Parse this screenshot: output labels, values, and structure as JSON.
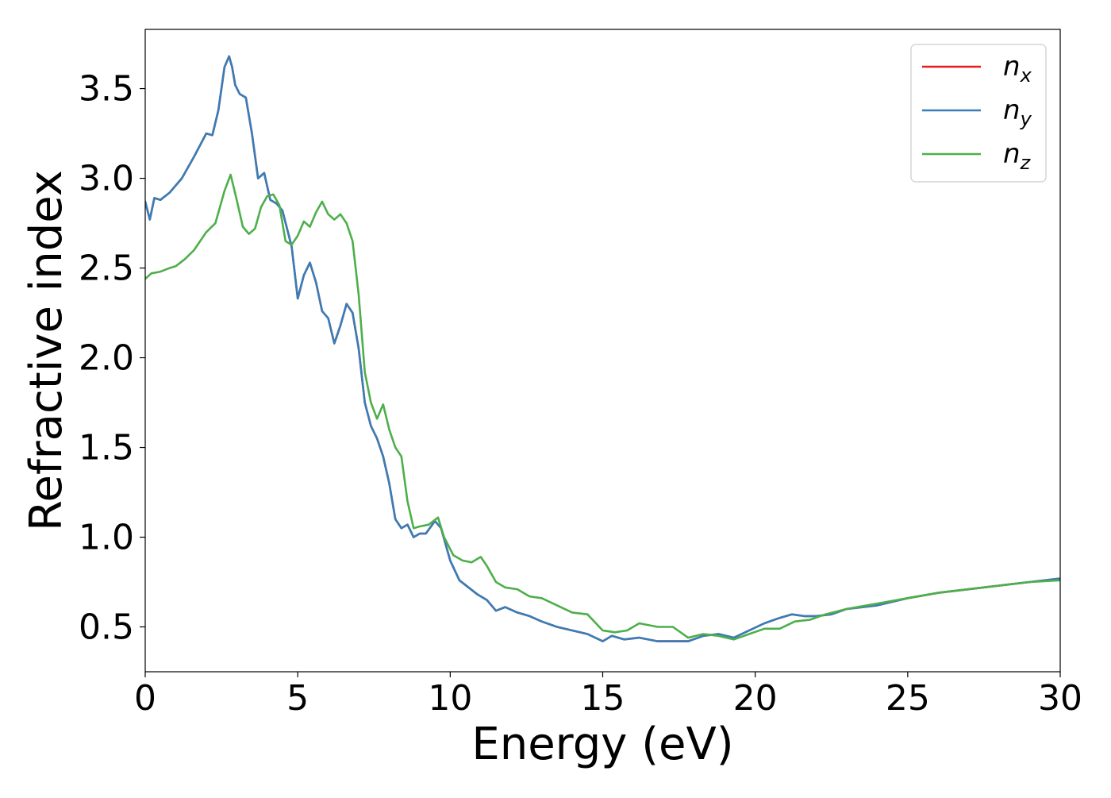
{
  "chart_data": {
    "type": "line",
    "title": "",
    "xlabel": "Energy (eV)",
    "ylabel": "Refractive index",
    "xlim": [
      0,
      30
    ],
    "ylim": [
      0.25,
      3.83
    ],
    "xticks": [
      0,
      5,
      10,
      15,
      20,
      25,
      30
    ],
    "yticks": [
      0.5,
      1.0,
      1.5,
      2.0,
      2.5,
      3.0,
      3.5
    ],
    "xtick_labels": [
      "0",
      "5",
      "10",
      "15",
      "20",
      "25",
      "30"
    ],
    "ytick_labels": [
      "0.5",
      "1.0",
      "1.5",
      "2.0",
      "2.5",
      "3.0",
      "3.5"
    ],
    "grid": false,
    "legend_position": "top-right",
    "series": [
      {
        "name": "n_x",
        "legend_base": "n",
        "legend_sub": "x",
        "color": "#e41a1c",
        "x": [
          0,
          0.15,
          0.3,
          0.5,
          0.8,
          1.2,
          1.6,
          2.0,
          2.2,
          2.4,
          2.6,
          2.75,
          2.85,
          2.95,
          3.1,
          3.3,
          3.5,
          3.7,
          3.9,
          4.1,
          4.3,
          4.5,
          4.8,
          5.0,
          5.2,
          5.4,
          5.6,
          5.8,
          6.0,
          6.2,
          6.4,
          6.6,
          6.8,
          7.0,
          7.2,
          7.4,
          7.6,
          7.8,
          8.0,
          8.2,
          8.4,
          8.6,
          8.8,
          9.0,
          9.2,
          9.5,
          9.7,
          10.0,
          10.3,
          10.6,
          10.9,
          11.2,
          11.5,
          11.8,
          12.2,
          12.6,
          13.0,
          13.5,
          14.0,
          14.5,
          15.0,
          15.3,
          15.7,
          16.2,
          16.8,
          17.3,
          17.8,
          18.3,
          18.8,
          19.3,
          19.8,
          20.3,
          20.8,
          21.2,
          21.6,
          22.0,
          22.5,
          23.0,
          24.0,
          25.0,
          26.0,
          27.0,
          28.0,
          29.0,
          30.0
        ],
        "y": [
          2.87,
          2.77,
          2.89,
          2.88,
          2.92,
          3.0,
          3.12,
          3.25,
          3.24,
          3.38,
          3.62,
          3.68,
          3.62,
          3.52,
          3.47,
          3.45,
          3.25,
          3.0,
          3.03,
          2.88,
          2.86,
          2.82,
          2.62,
          2.33,
          2.46,
          2.53,
          2.42,
          2.26,
          2.22,
          2.08,
          2.18,
          2.3,
          2.25,
          2.05,
          1.75,
          1.62,
          1.55,
          1.45,
          1.3,
          1.1,
          1.05,
          1.07,
          1.0,
          1.02,
          1.02,
          1.09,
          1.05,
          0.87,
          0.76,
          0.72,
          0.68,
          0.65,
          0.59,
          0.61,
          0.58,
          0.56,
          0.53,
          0.5,
          0.48,
          0.46,
          0.42,
          0.45,
          0.43,
          0.44,
          0.42,
          0.42,
          0.42,
          0.45,
          0.46,
          0.44,
          0.48,
          0.52,
          0.55,
          0.57,
          0.56,
          0.56,
          0.57,
          0.6,
          0.62,
          0.66,
          0.69,
          0.71,
          0.73,
          0.75,
          0.77
        ]
      },
      {
        "name": "n_y",
        "legend_base": "n",
        "legend_sub": "y",
        "color": "#377eb8",
        "x": [
          0,
          0.15,
          0.3,
          0.5,
          0.8,
          1.2,
          1.6,
          2.0,
          2.2,
          2.4,
          2.6,
          2.75,
          2.85,
          2.95,
          3.1,
          3.3,
          3.5,
          3.7,
          3.9,
          4.1,
          4.3,
          4.5,
          4.8,
          5.0,
          5.2,
          5.4,
          5.6,
          5.8,
          6.0,
          6.2,
          6.4,
          6.6,
          6.8,
          7.0,
          7.2,
          7.4,
          7.6,
          7.8,
          8.0,
          8.2,
          8.4,
          8.6,
          8.8,
          9.0,
          9.2,
          9.5,
          9.7,
          10.0,
          10.3,
          10.6,
          10.9,
          11.2,
          11.5,
          11.8,
          12.2,
          12.6,
          13.0,
          13.5,
          14.0,
          14.5,
          15.0,
          15.3,
          15.7,
          16.2,
          16.8,
          17.3,
          17.8,
          18.3,
          18.8,
          19.3,
          19.8,
          20.3,
          20.8,
          21.2,
          21.6,
          22.0,
          22.5,
          23.0,
          24.0,
          25.0,
          26.0,
          27.0,
          28.0,
          29.0,
          30.0
        ],
        "y": [
          2.87,
          2.77,
          2.89,
          2.88,
          2.92,
          3.0,
          3.12,
          3.25,
          3.24,
          3.38,
          3.62,
          3.68,
          3.62,
          3.52,
          3.47,
          3.45,
          3.25,
          3.0,
          3.03,
          2.88,
          2.86,
          2.82,
          2.62,
          2.33,
          2.46,
          2.53,
          2.42,
          2.26,
          2.22,
          2.08,
          2.18,
          2.3,
          2.25,
          2.05,
          1.75,
          1.62,
          1.55,
          1.45,
          1.3,
          1.1,
          1.05,
          1.07,
          1.0,
          1.02,
          1.02,
          1.09,
          1.05,
          0.87,
          0.76,
          0.72,
          0.68,
          0.65,
          0.59,
          0.61,
          0.58,
          0.56,
          0.53,
          0.5,
          0.48,
          0.46,
          0.42,
          0.45,
          0.43,
          0.44,
          0.42,
          0.42,
          0.42,
          0.45,
          0.46,
          0.44,
          0.48,
          0.52,
          0.55,
          0.57,
          0.56,
          0.56,
          0.57,
          0.6,
          0.62,
          0.66,
          0.69,
          0.71,
          0.73,
          0.75,
          0.77
        ]
      },
      {
        "name": "n_z",
        "legend_base": "n",
        "legend_sub": "z",
        "color": "#4daf4a",
        "x": [
          0,
          0.2,
          0.5,
          0.8,
          1.0,
          1.3,
          1.6,
          2.0,
          2.3,
          2.6,
          2.8,
          2.9,
          3.0,
          3.2,
          3.4,
          3.6,
          3.8,
          4.0,
          4.2,
          4.4,
          4.6,
          4.8,
          5.0,
          5.2,
          5.4,
          5.6,
          5.8,
          6.0,
          6.2,
          6.4,
          6.6,
          6.8,
          7.0,
          7.2,
          7.4,
          7.6,
          7.8,
          8.0,
          8.2,
          8.4,
          8.6,
          8.8,
          9.0,
          9.3,
          9.6,
          9.8,
          10.1,
          10.4,
          10.7,
          11.0,
          11.2,
          11.5,
          11.8,
          12.2,
          12.6,
          13.0,
          13.5,
          14.0,
          14.5,
          15.0,
          15.4,
          15.8,
          16.2,
          16.8,
          17.3,
          17.8,
          18.3,
          18.8,
          19.3,
          19.8,
          20.3,
          20.8,
          21.3,
          21.8,
          22.3,
          23.0,
          24.0,
          25.0,
          26.0,
          27.0,
          28.0,
          29.0,
          30.0
        ],
        "y": [
          2.44,
          2.47,
          2.48,
          2.5,
          2.51,
          2.55,
          2.6,
          2.7,
          2.75,
          2.93,
          3.02,
          2.95,
          2.88,
          2.73,
          2.69,
          2.72,
          2.84,
          2.9,
          2.91,
          2.85,
          2.65,
          2.63,
          2.68,
          2.76,
          2.73,
          2.81,
          2.87,
          2.8,
          2.77,
          2.8,
          2.75,
          2.65,
          2.35,
          1.92,
          1.75,
          1.66,
          1.74,
          1.6,
          1.5,
          1.45,
          1.2,
          1.05,
          1.06,
          1.07,
          1.11,
          1.0,
          0.9,
          0.87,
          0.86,
          0.89,
          0.84,
          0.75,
          0.72,
          0.71,
          0.67,
          0.66,
          0.62,
          0.58,
          0.57,
          0.48,
          0.47,
          0.48,
          0.52,
          0.5,
          0.5,
          0.44,
          0.46,
          0.45,
          0.43,
          0.46,
          0.49,
          0.49,
          0.53,
          0.54,
          0.57,
          0.6,
          0.63,
          0.66,
          0.69,
          0.71,
          0.73,
          0.75,
          0.76
        ]
      }
    ]
  }
}
